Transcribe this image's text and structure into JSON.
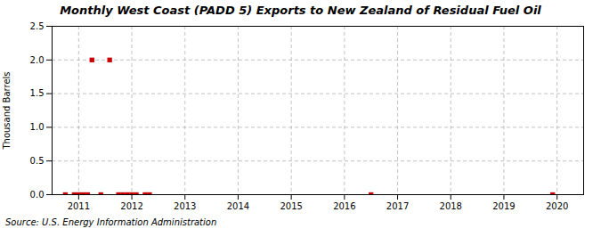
{
  "chart_data": {
    "type": "scatter",
    "title": "Monthly West Coast (PADD 5) Exports to New Zealand of Residual Fuel Oil",
    "ylabel": "Thousand Barrels",
    "source": "Source: U.S. Energy Information Administration",
    "x": [
      2010.75,
      2010.917,
      2011.0,
      2011.083,
      2011.167,
      2011.25,
      2011.417,
      2011.583,
      2011.75,
      2011.833,
      2011.917,
      2012.0,
      2012.083,
      2012.25,
      2012.333,
      2016.5,
      2019.917
    ],
    "values": [
      0.0,
      0.0,
      0.0,
      0.0,
      0.0,
      2.0,
      0.0,
      2.0,
      0.0,
      0.0,
      0.0,
      0.0,
      0.0,
      0.0,
      0.0,
      0.0,
      0.0
    ],
    "color": "#cc0000",
    "marker": "square",
    "xlim": [
      2010.5,
      2020.5
    ],
    "xticks": [
      2011,
      2012,
      2013,
      2014,
      2015,
      2016,
      2017,
      2018,
      2019,
      2020
    ],
    "ylim": [
      0.0,
      2.5
    ],
    "yticks": [
      {
        "value": 0,
        "label": "0.0"
      },
      0.5,
      {
        "value": 1,
        "label": "1.0"
      },
      1.5,
      {
        "value": 2,
        "label": "2.0"
      },
      2.5
    ],
    "grid": true
  }
}
